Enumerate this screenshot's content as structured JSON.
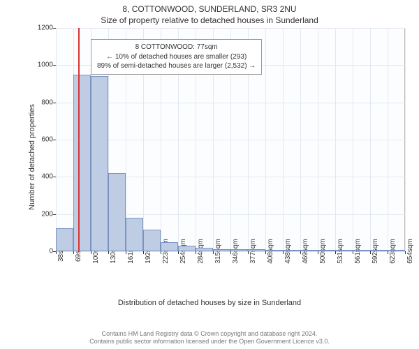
{
  "header": {
    "address": "8, COTTONWOOD, SUNDERLAND, SR3 2NU",
    "subtitle": "Size of property relative to detached houses in Sunderland"
  },
  "axes": {
    "ylabel": "Number of detached properties",
    "xlabel": "Distribution of detached houses by size in Sunderland"
  },
  "footer": {
    "line1": "Contains HM Land Registry data © Crown copyright and database right 2024.",
    "line2": "Contains public sector information licensed under the Open Government Licence v3.0."
  },
  "chart": {
    "type": "histogram",
    "background_color": "#fcfdff",
    "grid_color": "#e3e8f0",
    "bar_fill": "#becde4",
    "bar_border": "#7a94c2",
    "marker_color": "#d33",
    "ylim": [
      0,
      1200
    ],
    "yticks": [
      0,
      200,
      400,
      600,
      800,
      1000,
      1200
    ],
    "xticks": [
      "38sqm",
      "69sqm",
      "100sqm",
      "130sqm",
      "161sqm",
      "192sqm",
      "223sqm",
      "254sqm",
      "284sqm",
      "315sqm",
      "346sqm",
      "377sqm",
      "408sqm",
      "438sqm",
      "469sqm",
      "500sqm",
      "531sqm",
      "561sqm",
      "592sqm",
      "623sqm",
      "654sqm"
    ],
    "marker_x": 77,
    "x_range": [
      38,
      654
    ],
    "bars": [
      {
        "x0": 38,
        "x1": 69,
        "y": 125
      },
      {
        "x0": 69,
        "x1": 100,
        "y": 950
      },
      {
        "x0": 100,
        "x1": 130,
        "y": 940
      },
      {
        "x0": 130,
        "x1": 161,
        "y": 420
      },
      {
        "x0": 161,
        "x1": 192,
        "y": 180
      },
      {
        "x0": 192,
        "x1": 223,
        "y": 115
      },
      {
        "x0": 223,
        "x1": 254,
        "y": 50
      },
      {
        "x0": 254,
        "x1": 284,
        "y": 30
      },
      {
        "x0": 284,
        "x1": 315,
        "y": 20
      },
      {
        "x0": 315,
        "x1": 346,
        "y": 12
      },
      {
        "x0": 346,
        "x1": 377,
        "y": 10
      },
      {
        "x0": 377,
        "x1": 408,
        "y": 10
      },
      {
        "x0": 408,
        "x1": 438,
        "y": 4
      },
      {
        "x0": 438,
        "x1": 469,
        "y": 2
      },
      {
        "x0": 469,
        "x1": 500,
        "y": 6
      },
      {
        "x0": 500,
        "x1": 531,
        "y": 0
      },
      {
        "x0": 531,
        "x1": 561,
        "y": 2
      },
      {
        "x0": 561,
        "x1": 592,
        "y": 2
      },
      {
        "x0": 592,
        "x1": 623,
        "y": 0
      },
      {
        "x0": 623,
        "x1": 654,
        "y": 0
      }
    ],
    "info_box": {
      "line1": "8 COTTONWOOD: 77sqm",
      "line2": "← 10% of detached houses are smaller (293)",
      "line3": "89% of semi-detached houses are larger (2,532) →",
      "left_pct": 10,
      "top_pct": 5
    }
  }
}
